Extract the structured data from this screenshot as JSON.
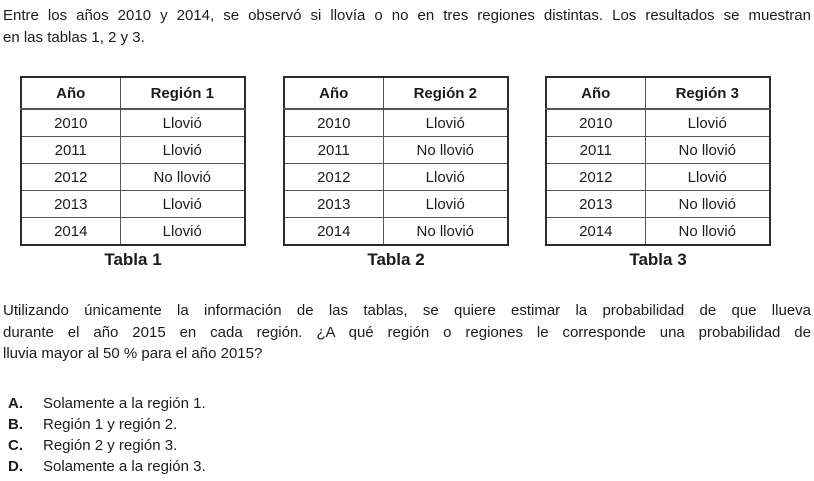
{
  "intro": {
    "lines": [
      "Entre los años 2010 y 2014, se observó si llovía o no en tres regiones distintas. Los resultados se muestran",
      "en las tablas 1, 2 y 3."
    ]
  },
  "tables": [
    {
      "caption": "Tabla 1",
      "headers": [
        "Año",
        "Región 1"
      ],
      "rows": [
        [
          "2010",
          "Llovió"
        ],
        [
          "2011",
          "Llovió"
        ],
        [
          "2012",
          "No llovió"
        ],
        [
          "2013",
          "Llovió"
        ],
        [
          "2014",
          "Llovió"
        ]
      ]
    },
    {
      "caption": "Tabla 2",
      "headers": [
        "Año",
        "Región 2"
      ],
      "rows": [
        [
          "2010",
          "Llovió"
        ],
        [
          "2011",
          "No llovió"
        ],
        [
          "2012",
          "Llovió"
        ],
        [
          "2013",
          "Llovió"
        ],
        [
          "2014",
          "No llovió"
        ]
      ]
    },
    {
      "caption": "Tabla 3",
      "headers": [
        "Año",
        "Región 3"
      ],
      "rows": [
        [
          "2010",
          "Llovió"
        ],
        [
          "2011",
          "No llovió"
        ],
        [
          "2012",
          "Llovió"
        ],
        [
          "2013",
          "No llovió"
        ],
        [
          "2014",
          "No llovió"
        ]
      ]
    }
  ],
  "question": {
    "lines": [
      "Utilizando únicamente la información de las tablas, se quiere estimar la probabilidad de que llueva",
      "durante el año 2015 en cada región. ¿A qué región o regiones le corresponde una probabilidad de",
      "lluvia mayor al 50 % para el año 2015?"
    ]
  },
  "options": [
    {
      "letter": "A.",
      "text": "Solamente a la región 1."
    },
    {
      "letter": "B.",
      "text": "Región 1 y región 2."
    },
    {
      "letter": "C.",
      "text": "Región 2 y región 3."
    },
    {
      "letter": "D.",
      "text": "Solamente a la región 3."
    }
  ],
  "colors": {
    "text": "#1c1c1c",
    "table_outer_border": "#2b2b2b",
    "table_grid_line": "#555555",
    "background": "#ffffff"
  }
}
